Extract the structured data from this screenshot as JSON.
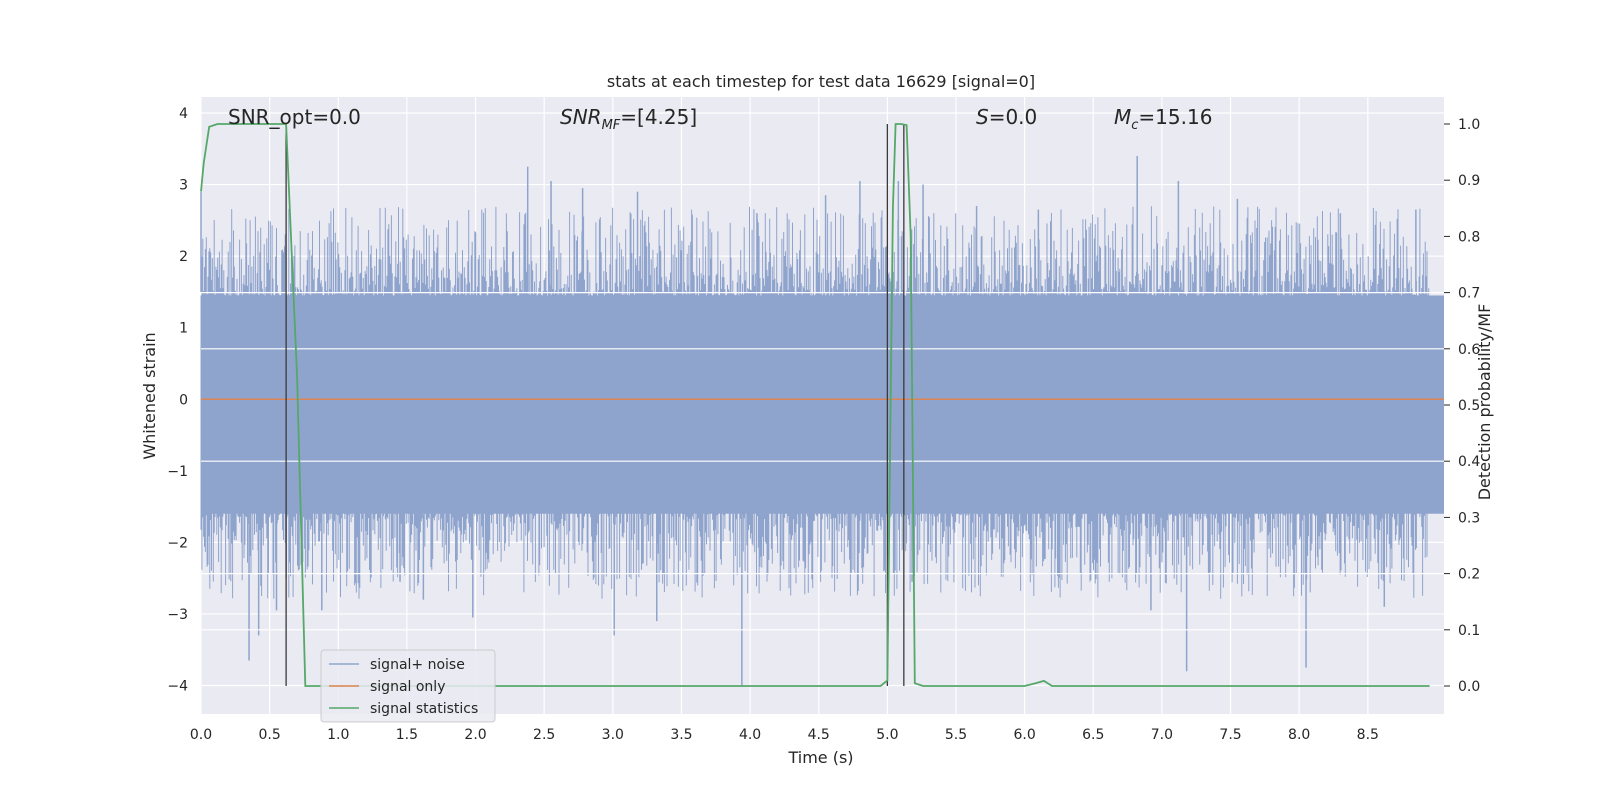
{
  "chart_data": {
    "type": "line",
    "title": "stats at each timestep for test data 16629 [signal=0]",
    "xlabel": "Time (s)",
    "ylabel": "Whitened strain",
    "ylabel_right": "Detection probability/MF",
    "xlim": [
      0.0,
      9.0
    ],
    "ylim": [
      -4.3,
      4.2
    ],
    "ylim_right": [
      -0.048,
      1.04
    ],
    "x_ticks": [
      "0.0",
      "0.5",
      "1.0",
      "1.5",
      "2.0",
      "2.5",
      "3.0",
      "3.5",
      "4.0",
      "4.5",
      "5.0",
      "5.5",
      "6.0",
      "6.5",
      "7.0",
      "7.5",
      "8.0",
      "8.5"
    ],
    "y_ticks": [
      "4",
      "3",
      "2",
      "1",
      "0",
      "−1",
      "−2",
      "−3",
      "−4"
    ],
    "y_tick_values": [
      4,
      3,
      2,
      1,
      0,
      -1,
      -2,
      -3,
      -4
    ],
    "y_right_ticks": [
      "1.0",
      "0.9",
      "0.8",
      "0.7",
      "0.6",
      "0.5",
      "0.4",
      "0.3",
      "0.2",
      "0.1",
      "0.0"
    ],
    "y_right_tick_values": [
      1.0,
      0.9,
      0.8,
      0.7,
      0.6,
      0.5,
      0.4,
      0.3,
      0.2,
      0.1,
      0.0
    ],
    "grid": true,
    "legend_position": "lower-left",
    "annotations": {
      "snr_opt": "SNR_opt=0.0",
      "snr_mf_main": "SNR",
      "snr_mf_sub": "MF",
      "snr_mf_rest": "=[4.25]",
      "s_main": "S",
      "s_rest": "=0.0",
      "mc_main": "M",
      "mc_sub": "c",
      "mc_rest": "=15.16"
    },
    "series": [
      {
        "name": "signal+ noise",
        "color": "#8fa4cc",
        "description_level": "dense noise",
        "typical_range": [
          -1.6,
          1.5
        ],
        "spike_points": [
          {
            "x": 0.35,
            "y": -3.65
          },
          {
            "x": 0.42,
            "y": -3.3
          },
          {
            "x": 0.55,
            "y": -2.95
          },
          {
            "x": 0.62,
            "y": -2.5
          },
          {
            "x": 0.88,
            "y": -2.95
          },
          {
            "x": 1.45,
            "y": -2.55
          },
          {
            "x": 1.62,
            "y": -2.8
          },
          {
            "x": 1.98,
            "y": -3.05
          },
          {
            "x": 2.38,
            "y": 3.25
          },
          {
            "x": 2.55,
            "y": 3.05
          },
          {
            "x": 2.78,
            "y": 2.95
          },
          {
            "x": 3.01,
            "y": -3.3
          },
          {
            "x": 3.18,
            "y": 2.9
          },
          {
            "x": 3.32,
            "y": -3.1
          },
          {
            "x": 3.94,
            "y": -4.0
          },
          {
            "x": 4.05,
            "y": 2.6
          },
          {
            "x": 4.55,
            "y": 2.85
          },
          {
            "x": 4.8,
            "y": 3.05
          },
          {
            "x": 5.08,
            "y": 3.05
          },
          {
            "x": 5.18,
            "y": -2.55
          },
          {
            "x": 5.26,
            "y": 3.0
          },
          {
            "x": 5.65,
            "y": 2.7
          },
          {
            "x": 6.1,
            "y": 2.65
          },
          {
            "x": 6.82,
            "y": 3.4
          },
          {
            "x": 6.92,
            "y": -2.95
          },
          {
            "x": 7.12,
            "y": 3.05
          },
          {
            "x": 7.18,
            "y": -3.8
          },
          {
            "x": 7.55,
            "y": 2.8
          },
          {
            "x": 8.05,
            "y": -3.75
          },
          {
            "x": 8.3,
            "y": 2.6
          },
          {
            "x": 8.62,
            "y": -2.9
          },
          {
            "x": 8.85,
            "y": 2.65
          },
          {
            "x": 0.0,
            "y": 2.9
          }
        ]
      },
      {
        "name": "signal only",
        "color": "#dd8452",
        "x": [
          0.0,
          9.0
        ],
        "y": [
          0.0,
          0.0
        ]
      },
      {
        "name": "signal statistics",
        "color": "#55a868",
        "axis": "right",
        "x": [
          0.0,
          0.02,
          0.06,
          0.12,
          0.2,
          0.3,
          0.4,
          0.5,
          0.6,
          0.62,
          0.7,
          0.76,
          0.8,
          1.0,
          2.0,
          3.0,
          4.0,
          4.5,
          4.95,
          5.0,
          5.04,
          5.06,
          5.1,
          5.14,
          5.17,
          5.2,
          5.26,
          5.5,
          6.0,
          6.08,
          6.14,
          6.2,
          6.5,
          7.0,
          8.0,
          8.95
        ],
        "y": [
          0.88,
          0.93,
          0.995,
          1.0,
          1.0,
          1.0,
          1.0,
          1.0,
          1.0,
          1.0,
          0.55,
          0.0,
          0.0,
          0.0,
          0.0,
          0.0,
          0.0,
          0.0,
          0.0,
          0.01,
          0.85,
          1.0,
          1.0,
          0.998,
          0.8,
          0.005,
          0.0,
          0.0,
          0.0,
          0.005,
          0.009,
          0.0,
          0.0,
          0.0,
          0.0,
          0.0
        ]
      }
    ],
    "vertical_markers": [
      {
        "x": 0.62,
        "y_from": 1.0,
        "y_to": 0.0
      },
      {
        "x": 5.0,
        "y_from": 1.0,
        "y_to": 0.0
      },
      {
        "x": 5.12,
        "y_from": 1.0,
        "y_to": 0.0
      }
    ],
    "horizontal_white_lines_right": [
      0.7,
      0.6,
      0.4,
      0.2,
      0.1
    ]
  }
}
